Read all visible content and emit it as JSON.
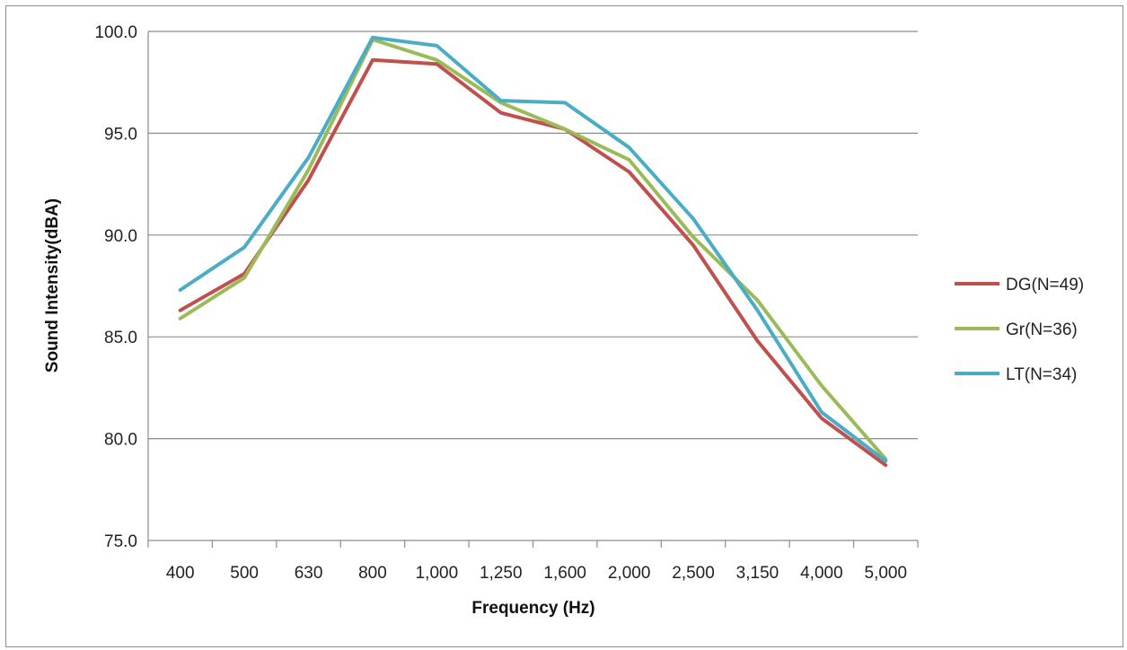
{
  "chart_data": {
    "type": "line",
    "title": "",
    "xlabel": "Frequency (Hz)",
    "ylabel": "Sound Intensity(dBA)",
    "categories": [
      "400",
      "500",
      "630",
      "800",
      "1,000",
      "1,250",
      "1,600",
      "2,000",
      "2,500",
      "3,150",
      "4,000",
      "5,000"
    ],
    "ylim": [
      75.0,
      100.0
    ],
    "yticks": [
      "75.0",
      "80.0",
      "85.0",
      "90.0",
      "95.0",
      "100.0"
    ],
    "ytick_values": [
      75,
      80,
      85,
      90,
      95,
      100
    ],
    "grid": true,
    "legend_position": "right",
    "series": [
      {
        "name": "DG(N=49)",
        "color": "#c0504d",
        "values": [
          86.3,
          88.1,
          92.7,
          98.6,
          98.4,
          96.0,
          95.2,
          93.1,
          89.5,
          84.8,
          81.0,
          78.7
        ]
      },
      {
        "name": "Gr(N=36)",
        "color": "#9bbb59",
        "values": [
          85.9,
          87.9,
          93.2,
          99.6,
          98.6,
          96.5,
          95.2,
          93.7,
          89.9,
          86.8,
          82.6,
          79.0
        ]
      },
      {
        "name": "LT(N=34)",
        "color": "#4bacc6",
        "values": [
          87.3,
          89.4,
          93.8,
          99.7,
          99.3,
          96.6,
          96.5,
          94.3,
          90.8,
          86.3,
          81.3,
          78.9
        ]
      }
    ]
  }
}
